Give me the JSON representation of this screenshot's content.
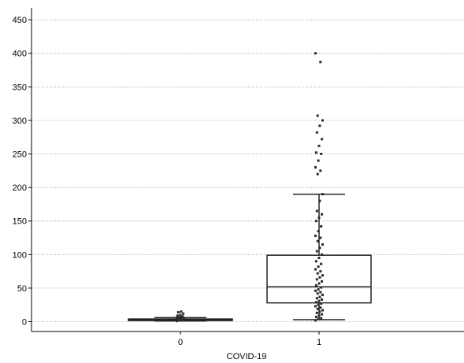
{
  "chart_data": {
    "type": "box",
    "xlabel": "COVID-19",
    "ylabel": "",
    "title": "",
    "ylim": [
      -15,
      455
    ],
    "yticks": [
      0,
      50,
      100,
      150,
      200,
      250,
      300,
      350,
      400,
      450
    ],
    "grid": "horizontal dotted",
    "categories": [
      "0",
      "1"
    ],
    "boxes": [
      {
        "category": "0",
        "whisker_low": 1,
        "q1": 2,
        "median": 3,
        "q3": 4,
        "whisker_high": 6,
        "points": [
          1,
          2,
          2,
          3,
          3,
          3,
          4,
          4,
          5,
          5,
          6,
          6,
          7,
          8,
          9,
          10,
          12,
          14,
          15
        ]
      },
      {
        "category": "1",
        "whisker_low": 3,
        "q1": 28,
        "median": 52,
        "q3": 99,
        "whisker_high": 190,
        "points": [
          2,
          4,
          5,
          7,
          9,
          11,
          13,
          15,
          17,
          19,
          21,
          23,
          25,
          27,
          29,
          31,
          33,
          35,
          37,
          40,
          42,
          44,
          46,
          48,
          51,
          54,
          57,
          60,
          63,
          66,
          69,
          72,
          75,
          78,
          82,
          86,
          90,
          95,
          100,
          105,
          110,
          115,
          120,
          125,
          128,
          135,
          142,
          150,
          155,
          160,
          165,
          180,
          190,
          220,
          225,
          230,
          240,
          250,
          252,
          262,
          272,
          282,
          292,
          300,
          307,
          387,
          400
        ]
      }
    ]
  },
  "colors": {
    "box": "#222222",
    "points": "#2a2a2a",
    "grid": "#9a9a9a",
    "axis": "#000000"
  }
}
